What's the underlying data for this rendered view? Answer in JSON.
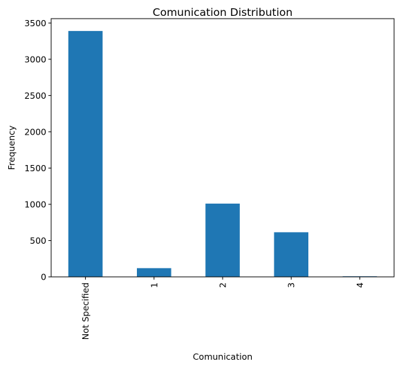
{
  "chart_data": {
    "type": "bar",
    "title": "Comunication Distribution",
    "xlabel": "Comunication",
    "ylabel": "Frequency",
    "categories": [
      "Not Specified",
      "1",
      "2",
      "3",
      "4"
    ],
    "values": [
      3390,
      120,
      1010,
      615,
      8
    ],
    "ylim": [
      0,
      3560
    ],
    "yticks": [
      0,
      500,
      1000,
      1500,
      2000,
      2500,
      3000,
      3500
    ],
    "grid": false,
    "legend": "none",
    "bar_color": "#1f77b4"
  }
}
